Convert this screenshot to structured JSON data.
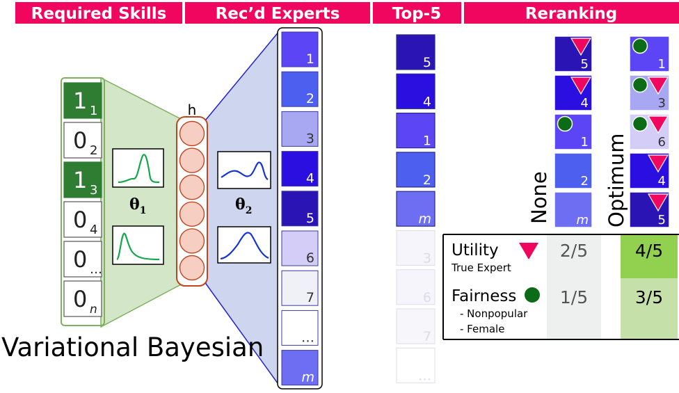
{
  "headers": {
    "required_skills": "Required Skills",
    "recd_experts": "Rec’d Experts",
    "top5": "Top-5",
    "reranking": "Reranking"
  },
  "colors": {
    "header_bg": "#f0065f",
    "skill_on": "#2e7d32",
    "encoder_fill": "#d3e7c8",
    "decoder_fill": "#cdd6ee",
    "hidden_node": "#f6cfc2",
    "hidden_stroke": "#c0441e",
    "pdf_green": "#12a84a",
    "pdf_blue": "#1334d6",
    "utility_marker": "#f0065f",
    "fairness_marker": "#0b6b16"
  },
  "skills": [
    {
      "value": "1",
      "sub": "1",
      "on": true
    },
    {
      "value": "0",
      "sub": "2",
      "on": false
    },
    {
      "value": "1",
      "sub": "3",
      "on": true
    },
    {
      "value": "0",
      "sub": "4",
      "on": false
    },
    {
      "value": "0",
      "sub": "…",
      "on": false
    },
    {
      "value": "0",
      "sub": "n",
      "on": false
    }
  ],
  "model": {
    "hidden_label": "h",
    "theta1_base": "θ",
    "theta1_sub": "1",
    "theta2_base": "θ",
    "theta2_sub": "2",
    "caption": "Variational Bayesian"
  },
  "experts": [
    {
      "label": "1",
      "color": "#5b45f5"
    },
    {
      "label": "2",
      "color": "#4d5fef"
    },
    {
      "label": "3",
      "color": "#a8a8f2"
    },
    {
      "label": "4",
      "color": "#2b0fe0"
    },
    {
      "label": "5",
      "color": "#2a14b4"
    },
    {
      "label": "6",
      "color": "#d3cdf7"
    },
    {
      "label": "7",
      "color": "#f0f0f7"
    },
    {
      "label": "…",
      "color": "#ffffff"
    },
    {
      "label": "m",
      "color": "#6e6ef2"
    }
  ],
  "top5": [
    {
      "label": "5",
      "color": "#2a14b4"
    },
    {
      "label": "4",
      "color": "#2b0fe0"
    },
    {
      "label": "1",
      "color": "#5b45f5"
    },
    {
      "label": "2",
      "color": "#4d5fef"
    },
    {
      "label": "m",
      "color": "#6e6ef2"
    },
    {
      "label": "3",
      "color": "#f5f5fb"
    },
    {
      "label": "6",
      "color": "#f5f5fb"
    },
    {
      "label": "7",
      "color": "#f7f7fb"
    },
    {
      "label": "…",
      "color": "#ffffff"
    }
  ],
  "rerank_none": {
    "label": "None",
    "items": [
      {
        "label": "5",
        "color": "#2a14b4",
        "utility": true,
        "fairness": false
      },
      {
        "label": "4",
        "color": "#2b0fe0",
        "utility": true,
        "fairness": false
      },
      {
        "label": "1",
        "color": "#5b45f5",
        "utility": false,
        "fairness": true
      },
      {
        "label": "2",
        "color": "#4d5fef",
        "utility": false,
        "fairness": false
      },
      {
        "label": "m",
        "color": "#6e6ef2",
        "utility": false,
        "fairness": false
      }
    ]
  },
  "rerank_optimum": {
    "label": "Optimum",
    "items": [
      {
        "label": "1",
        "color": "#5b45f5",
        "utility": false,
        "fairness": true
      },
      {
        "label": "3",
        "color": "#a8a8f2",
        "utility": true,
        "fairness": true
      },
      {
        "label": "6",
        "color": "#d3cdf7",
        "utility": true,
        "fairness": true
      },
      {
        "label": "4",
        "color": "#2b0fe0",
        "utility": true,
        "fairness": false
      },
      {
        "label": "5",
        "color": "#2a14b4",
        "utility": true,
        "fairness": false
      }
    ]
  },
  "metrics": {
    "utility": {
      "label": "Utility",
      "sub": "True Expert",
      "none": "2/5",
      "optimum": "4/5"
    },
    "fairness": {
      "label": "Fairness",
      "subs": [
        "- Nonpopular",
        "- Female"
      ],
      "none": "1/5",
      "optimum": "3/5"
    }
  }
}
